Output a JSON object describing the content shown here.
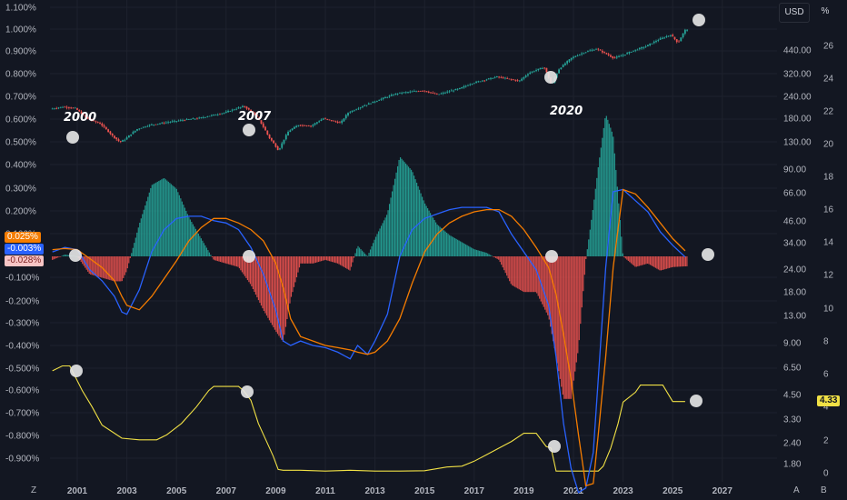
{
  "toolbar": {
    "currency_button": "USD",
    "percent_button": "%"
  },
  "axes": {
    "left_ticks": [
      "1.100%",
      "1.000%",
      "0.900%",
      "0.800%",
      "0.700%",
      "0.600%",
      "0.500%",
      "0.400%",
      "0.300%",
      "0.200%",
      "0.100%",
      "-0.100%",
      "-0.200%",
      "-0.300%",
      "-0.400%",
      "-0.500%",
      "-0.600%",
      "-0.700%",
      "-0.800%",
      "-0.900%"
    ],
    "price_ticks": [
      "440.00",
      "320.00",
      "240.00",
      "180.00",
      "130.00",
      "90.00",
      "66.00",
      "46.00",
      "34.00",
      "24.00",
      "18.00",
      "13.00",
      "9.00",
      "6.50",
      "4.50",
      "3.30",
      "2.40",
      "1.80"
    ],
    "rate_ticks": [
      "26",
      "24",
      "22",
      "20",
      "18",
      "16",
      "14",
      "12",
      "10",
      "8",
      "6",
      "4",
      "2",
      "0"
    ],
    "x_ticks": [
      "2001",
      "2003",
      "2005",
      "2007",
      "2009",
      "2011",
      "2013",
      "2015",
      "2017",
      "2019",
      "2021",
      "2023",
      "2025",
      "2027"
    ],
    "corner_left": "Z",
    "corner_right_a": "A",
    "corner_right_b": "B"
  },
  "badges": {
    "orange": "0.025%",
    "blue": "-0.003%",
    "red": "-0.028%",
    "yellow": "4.33"
  },
  "colors": {
    "background": "#131722",
    "up": "#26a69a",
    "down": "#ef5350",
    "macd": "#2962ff",
    "signal": "#f57c00",
    "rate": "#f0e045",
    "marker": "#e8e8e8"
  },
  "chart_data": [
    {
      "type": "candlestick",
      "name": "",
      "scale": "log",
      "x": [
        2000.0,
        2000.5,
        2001.0,
        2001.5,
        2002.0,
        2002.5,
        2002.8,
        2003.0,
        2003.5,
        2004.0,
        2005.0,
        2006.0,
        2007.0,
        2007.8,
        2008.3,
        2008.8,
        2009.2,
        2009.6,
        2010.0,
        2010.5,
        2011.0,
        2011.7,
        2012.0,
        2013.0,
        2014.0,
        2015.0,
        2015.6,
        2016.0,
        2016.5,
        2017.0,
        2018.0,
        2018.9,
        2019.3,
        2019.9,
        2020.2,
        2020.5,
        2021.0,
        2021.5,
        2022.0,
        2022.7,
        2023.0,
        2023.5,
        2024.0,
        2024.5,
        2025.0,
        2025.3,
        2025.6
      ],
      "values": [
        150,
        156,
        152,
        125,
        115,
        92,
        82,
        86,
        104,
        112,
        120,
        127,
        140,
        158,
        132,
        90,
        70,
        100,
        112,
        110,
        126,
        116,
        140,
        170,
        200,
        210,
        195,
        205,
        218,
        240,
        270,
        250,
        290,
        322,
        230,
        310,
        380,
        420,
        450,
        380,
        395,
        435,
        470,
        530,
        580,
        500,
        640
      ],
      "annotations": [
        "2000",
        "2007",
        "2020"
      ]
    },
    {
      "type": "macd",
      "macd_x": [
        2000.0,
        2000.5,
        2001.0,
        2001.5,
        2002.0,
        2002.5,
        2002.8,
        2003.0,
        2003.5,
        2004.0,
        2004.5,
        2005.0,
        2005.5,
        2006.0,
        2006.5,
        2007.0,
        2007.5,
        2008.0,
        2008.5,
        2009.0,
        2009.3,
        2009.6,
        2010.0,
        2010.5,
        2011.0,
        2011.5,
        2012.0,
        2012.3,
        2012.7,
        2013.0,
        2013.5,
        2014.0,
        2014.5,
        2015.0,
        2015.5,
        2016.0,
        2016.5,
        2017.0,
        2017.5,
        2018.0,
        2018.5,
        2019.0,
        2019.5,
        2020.0,
        2020.3,
        2020.6,
        2020.9,
        2021.2,
        2021.5,
        2021.8,
        2022.0,
        2022.3,
        2022.6,
        2023.0,
        2023.5,
        2024.0,
        2024.5,
        2025.0,
        2025.5
      ],
      "macd": [
        0.02,
        0.04,
        0.03,
        -0.06,
        -0.11,
        -0.18,
        -0.25,
        -0.26,
        -0.15,
        0.02,
        0.12,
        0.17,
        0.18,
        0.18,
        0.16,
        0.15,
        0.12,
        0.04,
        -0.08,
        -0.24,
        -0.38,
        -0.4,
        -0.38,
        -0.4,
        -0.41,
        -0.43,
        -0.46,
        -0.4,
        -0.44,
        -0.38,
        -0.26,
        0.0,
        0.12,
        0.17,
        0.19,
        0.21,
        0.22,
        0.22,
        0.22,
        0.2,
        0.1,
        0.02,
        -0.06,
        -0.22,
        -0.45,
        -0.75,
        -0.95,
        -1.06,
        -1.04,
        -0.88,
        -0.55,
        -0.05,
        0.29,
        0.3,
        0.25,
        0.2,
        0.11,
        0.05,
        -0.003
      ],
      "signal": [
        0.03,
        0.035,
        0.03,
        -0.01,
        -0.05,
        -0.11,
        -0.18,
        -0.22,
        -0.24,
        -0.18,
        -0.1,
        -0.02,
        0.07,
        0.13,
        0.17,
        0.17,
        0.15,
        0.12,
        0.07,
        -0.03,
        -0.14,
        -0.28,
        -0.36,
        -0.38,
        -0.4,
        -0.41,
        -0.42,
        -0.43,
        -0.44,
        -0.43,
        -0.38,
        -0.28,
        -0.12,
        0.02,
        0.1,
        0.15,
        0.18,
        0.2,
        0.21,
        0.21,
        0.18,
        0.12,
        0.04,
        -0.05,
        -0.17,
        -0.35,
        -0.55,
        -0.8,
        -1.03,
        -1.02,
        -0.8,
        -0.45,
        -0.05,
        0.3,
        0.28,
        0.22,
        0.15,
        0.08,
        0.025
      ]
    },
    {
      "type": "line",
      "name": "",
      "x": [
        2000.0,
        2000.4,
        2000.7,
        2001.2,
        2001.6,
        2002.0,
        2002.8,
        2003.5,
        2004.2,
        2004.6,
        2005.2,
        2005.8,
        2006.3,
        2006.5,
        2007.0,
        2007.5,
        2007.7,
        2008.0,
        2008.3,
        2008.6,
        2008.9,
        2009.1,
        2009.3,
        2010.0,
        2011.0,
        2012.0,
        2013.0,
        2014.0,
        2015.0,
        2015.9,
        2016.5,
        2017.0,
        2017.5,
        2018.0,
        2018.5,
        2019.0,
        2019.5,
        2019.9,
        2020.1,
        2020.3,
        2021.0,
        2021.5,
        2022.0,
        2022.2,
        2022.5,
        2022.8,
        2023.0,
        2023.5,
        2023.7,
        2024.0,
        2024.6,
        2025.0,
        2025.5
      ],
      "values": [
        6.2,
        6.5,
        6.5,
        5.0,
        4.0,
        2.9,
        2.1,
        2.0,
        2.0,
        2.3,
        3.0,
        4.0,
        5.0,
        5.25,
        5.25,
        5.25,
        5.0,
        4.4,
        3.0,
        2.0,
        1.0,
        0.2,
        0.15,
        0.15,
        0.1,
        0.15,
        0.1,
        0.1,
        0.12,
        0.35,
        0.4,
        0.7,
        1.1,
        1.5,
        1.9,
        2.4,
        2.4,
        1.6,
        1.5,
        0.1,
        0.1,
        0.1,
        0.1,
        0.4,
        1.5,
        3.0,
        4.3,
        4.9,
        5.33,
        5.33,
        5.33,
        4.33,
        4.33
      ]
    }
  ]
}
